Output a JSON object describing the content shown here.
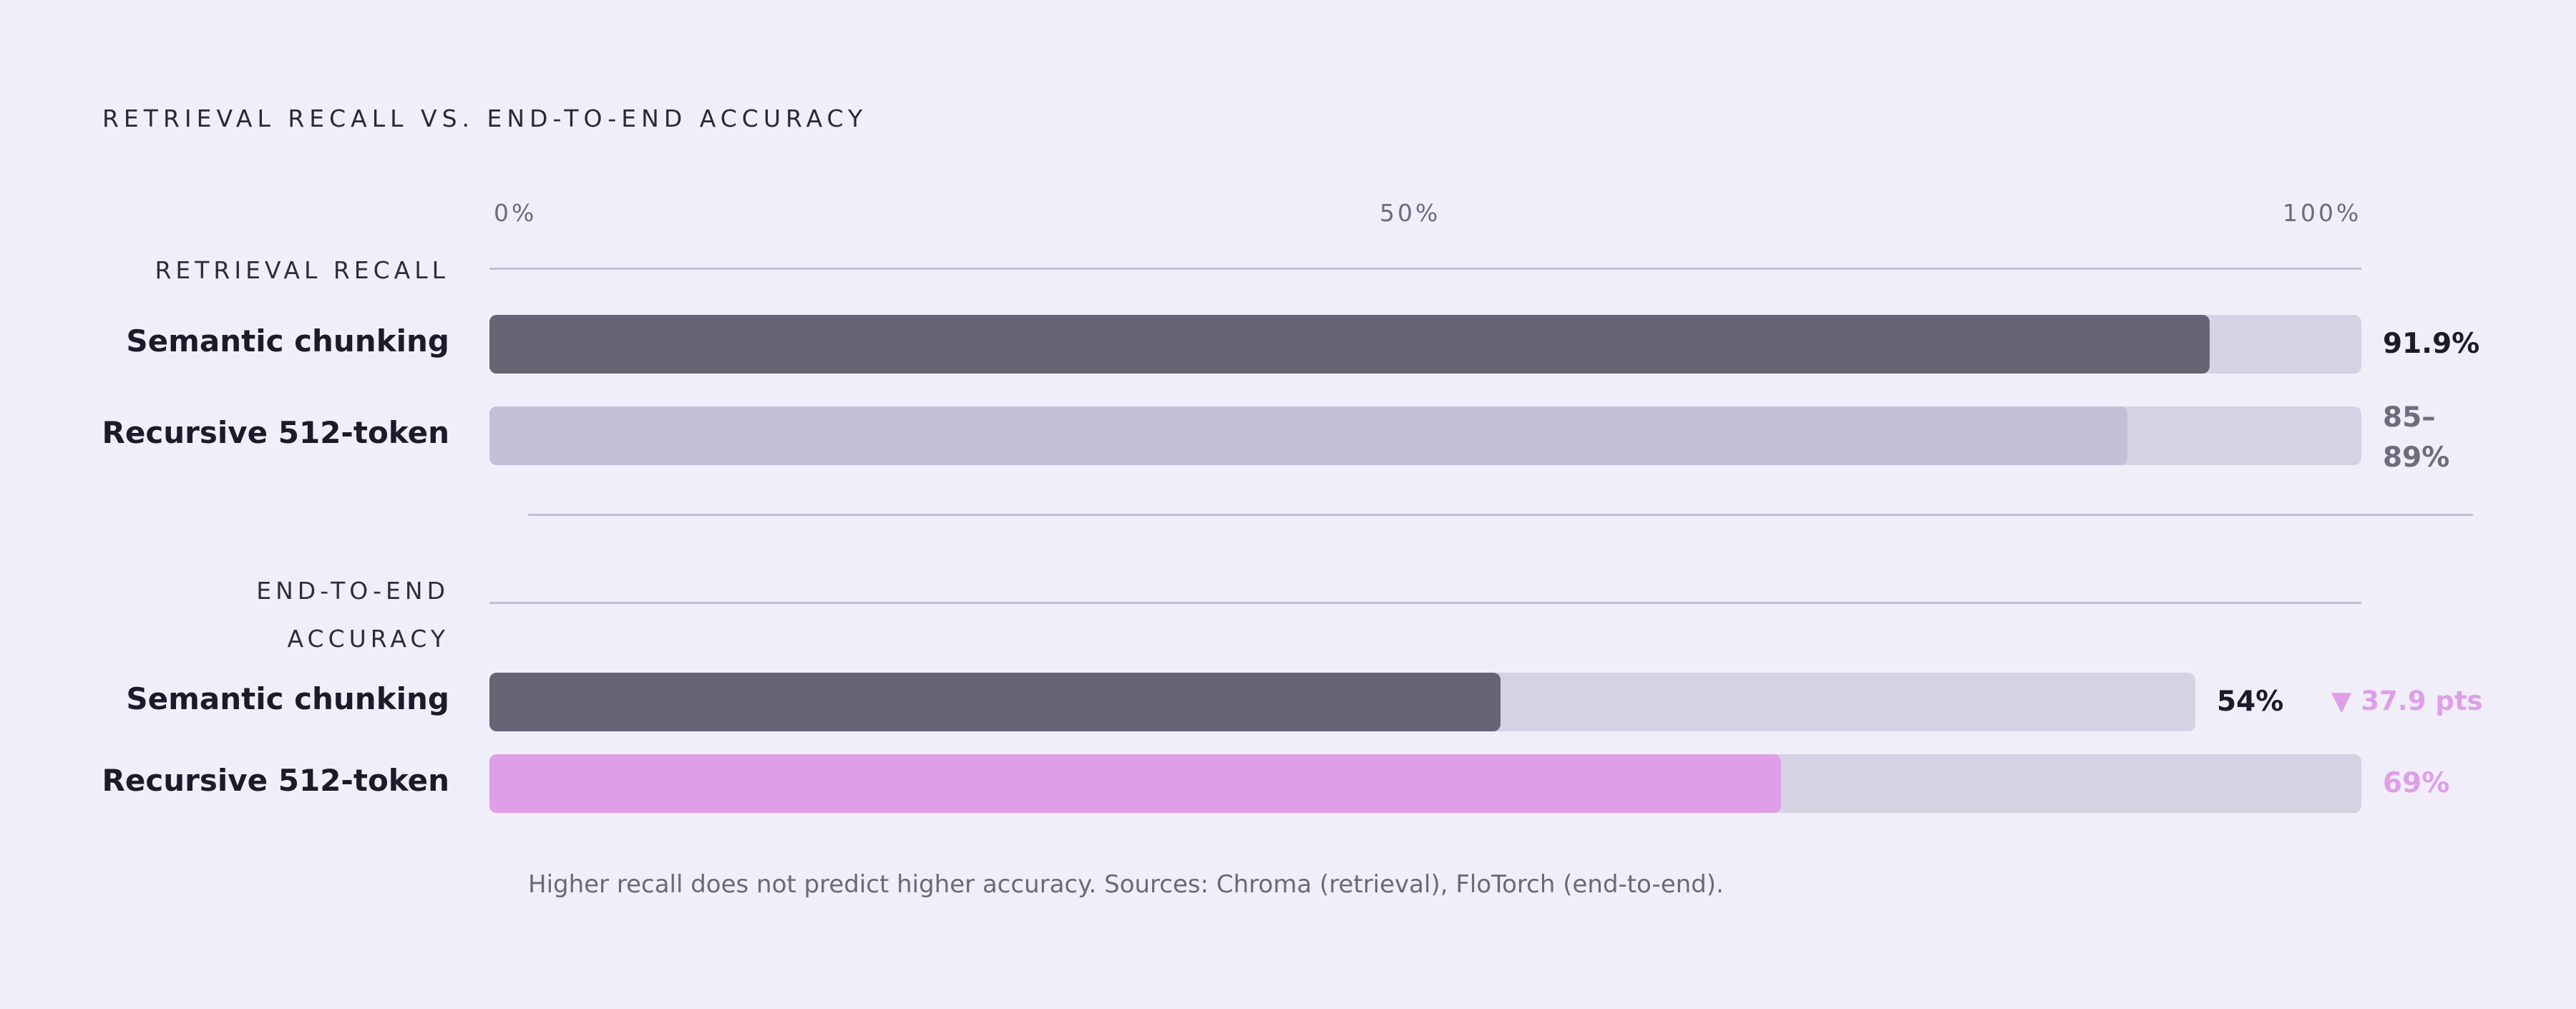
{
  "chart_data": {
    "type": "bar",
    "orientation": "horizontal",
    "title": "RETRIEVAL RECALL VS. END-TO-END ACCURACY",
    "xlim": [
      0,
      100
    ],
    "x_ticks": [
      "0%",
      "50%",
      "100%"
    ],
    "groups": [
      {
        "label": "RETRIEVAL RECALL",
        "bars": [
          {
            "category": "Semantic chunking",
            "value": 91.9,
            "value_label": "91.9%",
            "color": "#676476"
          },
          {
            "category": "Recursive 512-token",
            "value": 87.5,
            "range": [
              85,
              89
            ],
            "value_label_lines": [
              "85–",
              "89%"
            ],
            "color": "#c3c0d6"
          }
        ]
      },
      {
        "label_lines": [
          "END-TO-END",
          "ACCURACY"
        ],
        "bars": [
          {
            "category": "Semantic chunking",
            "value": 54,
            "value_label": "54%",
            "color": "#676476",
            "annotation": "▼ 37.9 pts"
          },
          {
            "category": "Recursive 512-token",
            "value": 69,
            "value_label": "69%",
            "color": "#de9fe8"
          }
        ]
      }
    ],
    "footnote": "Higher recall does not predict higher accuracy. Sources: Chroma (retrieval), FloTorch (end-to-end).",
    "colors": {
      "background": "#f0eef8",
      "track": "#d5d3e3",
      "semantic": "#676476",
      "recursive_recall": "#c3c0d6",
      "recursive_accuracy": "#de9fe8",
      "annotation": "#de9fe8",
      "rule": "#c3c0d6"
    }
  }
}
